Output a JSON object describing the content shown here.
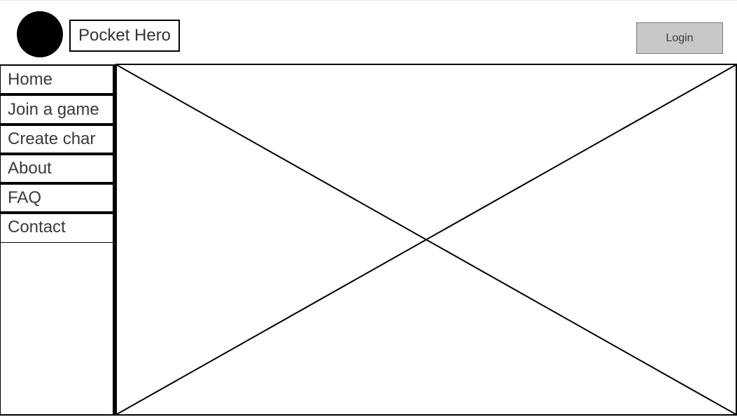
{
  "header": {
    "title": "Pocket Hero",
    "login_label": "Login"
  },
  "sidebar": {
    "items": [
      {
        "label": "Home"
      },
      {
        "label": "Join a game"
      },
      {
        "label": "Create char"
      },
      {
        "label": "About"
      },
      {
        "label": "FAQ"
      },
      {
        "label": "Contact"
      }
    ]
  },
  "main": {
    "content": "image-placeholder"
  }
}
